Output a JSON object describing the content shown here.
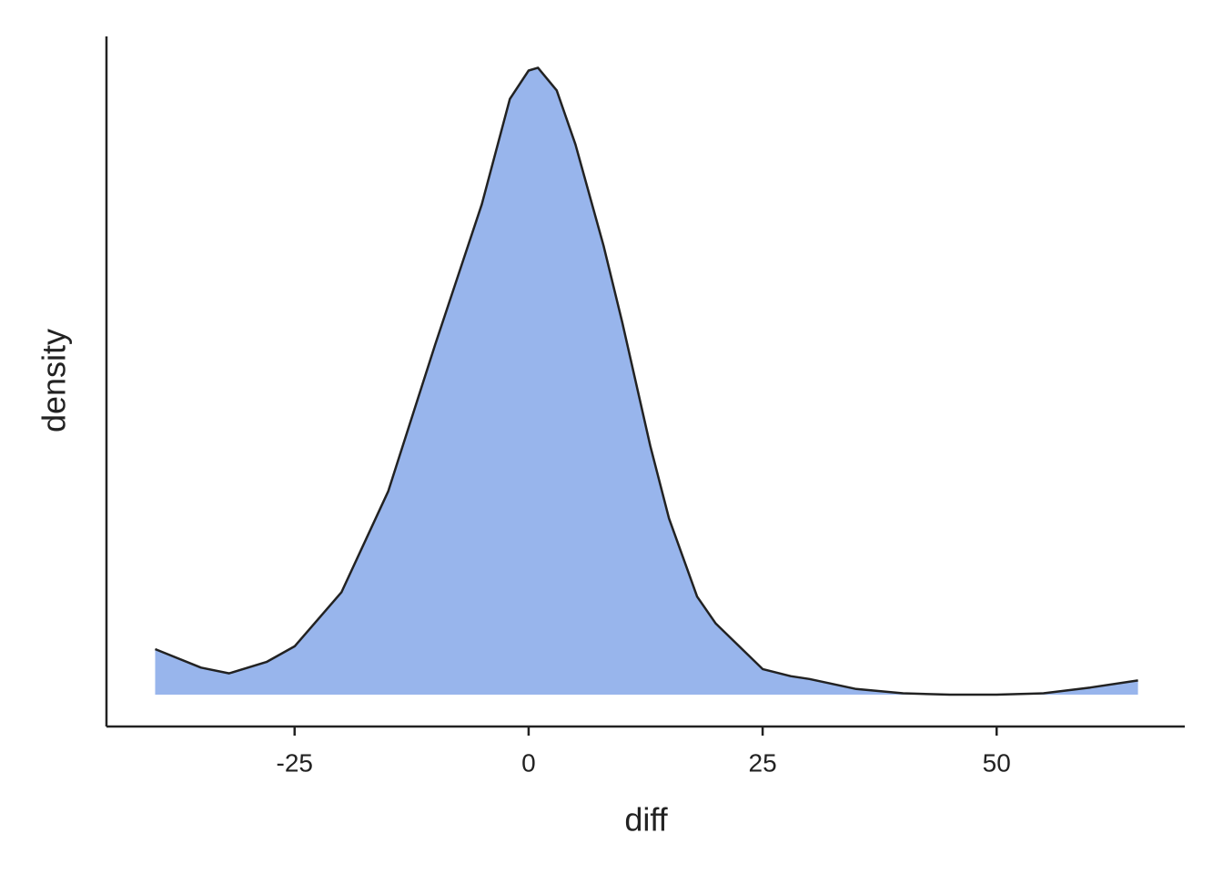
{
  "chart_data": {
    "type": "area",
    "x_label": "diff",
    "y_label": "density",
    "x": [
      -39.9,
      -35,
      -32,
      -28,
      -25,
      -20,
      -15,
      -10,
      -5,
      -2,
      0,
      1,
      3,
      5,
      8,
      10,
      13,
      15,
      18,
      20,
      25,
      28,
      30,
      35,
      40,
      45,
      50,
      55,
      60,
      65.1
    ],
    "series": [
      {
        "color": "#98b5ec",
        "values": [
          0.0032,
          0.0019,
          0.0015,
          0.0023,
          0.0034,
          0.0072,
          0.0143,
          0.0246,
          0.0345,
          0.0419,
          0.0439,
          0.0441,
          0.0425,
          0.0387,
          0.0316,
          0.0262,
          0.0175,
          0.0124,
          0.0069,
          0.005,
          0.0018,
          0.0013,
          0.0011,
          0.0004,
          0.0001,
          0,
          0,
          0.0001,
          0.0005,
          0.001
        ]
      }
    ],
    "xlim": [
      -45.1,
      70.1
    ],
    "xticks": [
      -25,
      0,
      25,
      50
    ],
    "ylim": [
      -0.00224,
      0.0463
    ],
    "line_color": "#222222"
  }
}
